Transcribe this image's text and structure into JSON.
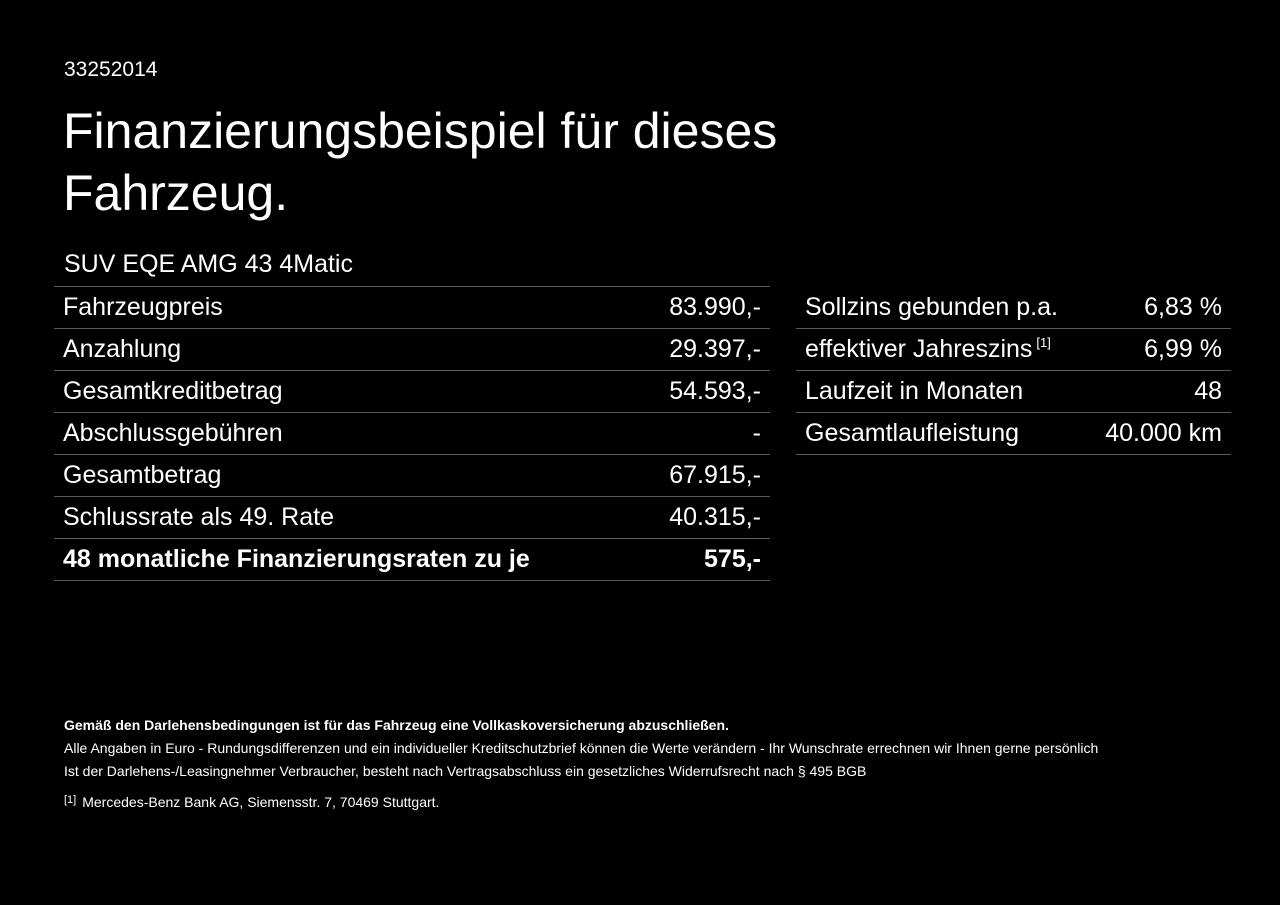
{
  "id": "33252014",
  "title": "Finanzierungsbeispiel für dieses Fahrzeug.",
  "model": "SUV EQE AMG 43 4Matic",
  "left_table": [
    {
      "label": "Fahrzeugpreis",
      "value": "83.990,-"
    },
    {
      "label": "Anzahlung",
      "value": "29.397,-"
    },
    {
      "label": "Gesamtkreditbetrag",
      "value": "54.593,-"
    },
    {
      "label": "Abschlussgebühren",
      "value": "-"
    },
    {
      "label": "Gesamtbetrag",
      "value": "67.915,-"
    },
    {
      "label": "Schlussrate als 49. Rate",
      "value": "40.315,-"
    },
    {
      "label": "48 monatliche Finanzierungsraten zu je",
      "value": "575,-"
    }
  ],
  "right_table": [
    {
      "label": "Sollzins gebunden p.a.",
      "value": "6,83 %"
    },
    {
      "label": "effektiver Jahreszins",
      "sup": "[1]",
      "value": "6,99 %"
    },
    {
      "label": "Laufzeit in Monaten",
      "value": "48"
    },
    {
      "label": "Gesamtlaufleistung",
      "value": "40.000 km"
    }
  ],
  "footer": {
    "insurance": "Gemäß den Darlehensbedingungen ist für das Fahrzeug eine Vollkaskoversicherung abzuschließen.",
    "line1": "Alle Angaben in Euro - Rundungsdifferenzen und ein individueller Kreditschutzbrief können die Werte verändern - Ihr Wunschrate errechnen wir Ihnen gerne persönlich",
    "line2": "Ist der Darlehens-/Leasingnehmer Verbraucher, besteht nach Vertragsabschluss ein gesetzliches Widerrufsrecht nach § 495 BGB",
    "note_mark": "[1]",
    "note": "Mercedes-Benz Bank AG, Siemensstr. 7, 70469 Stuttgart."
  }
}
